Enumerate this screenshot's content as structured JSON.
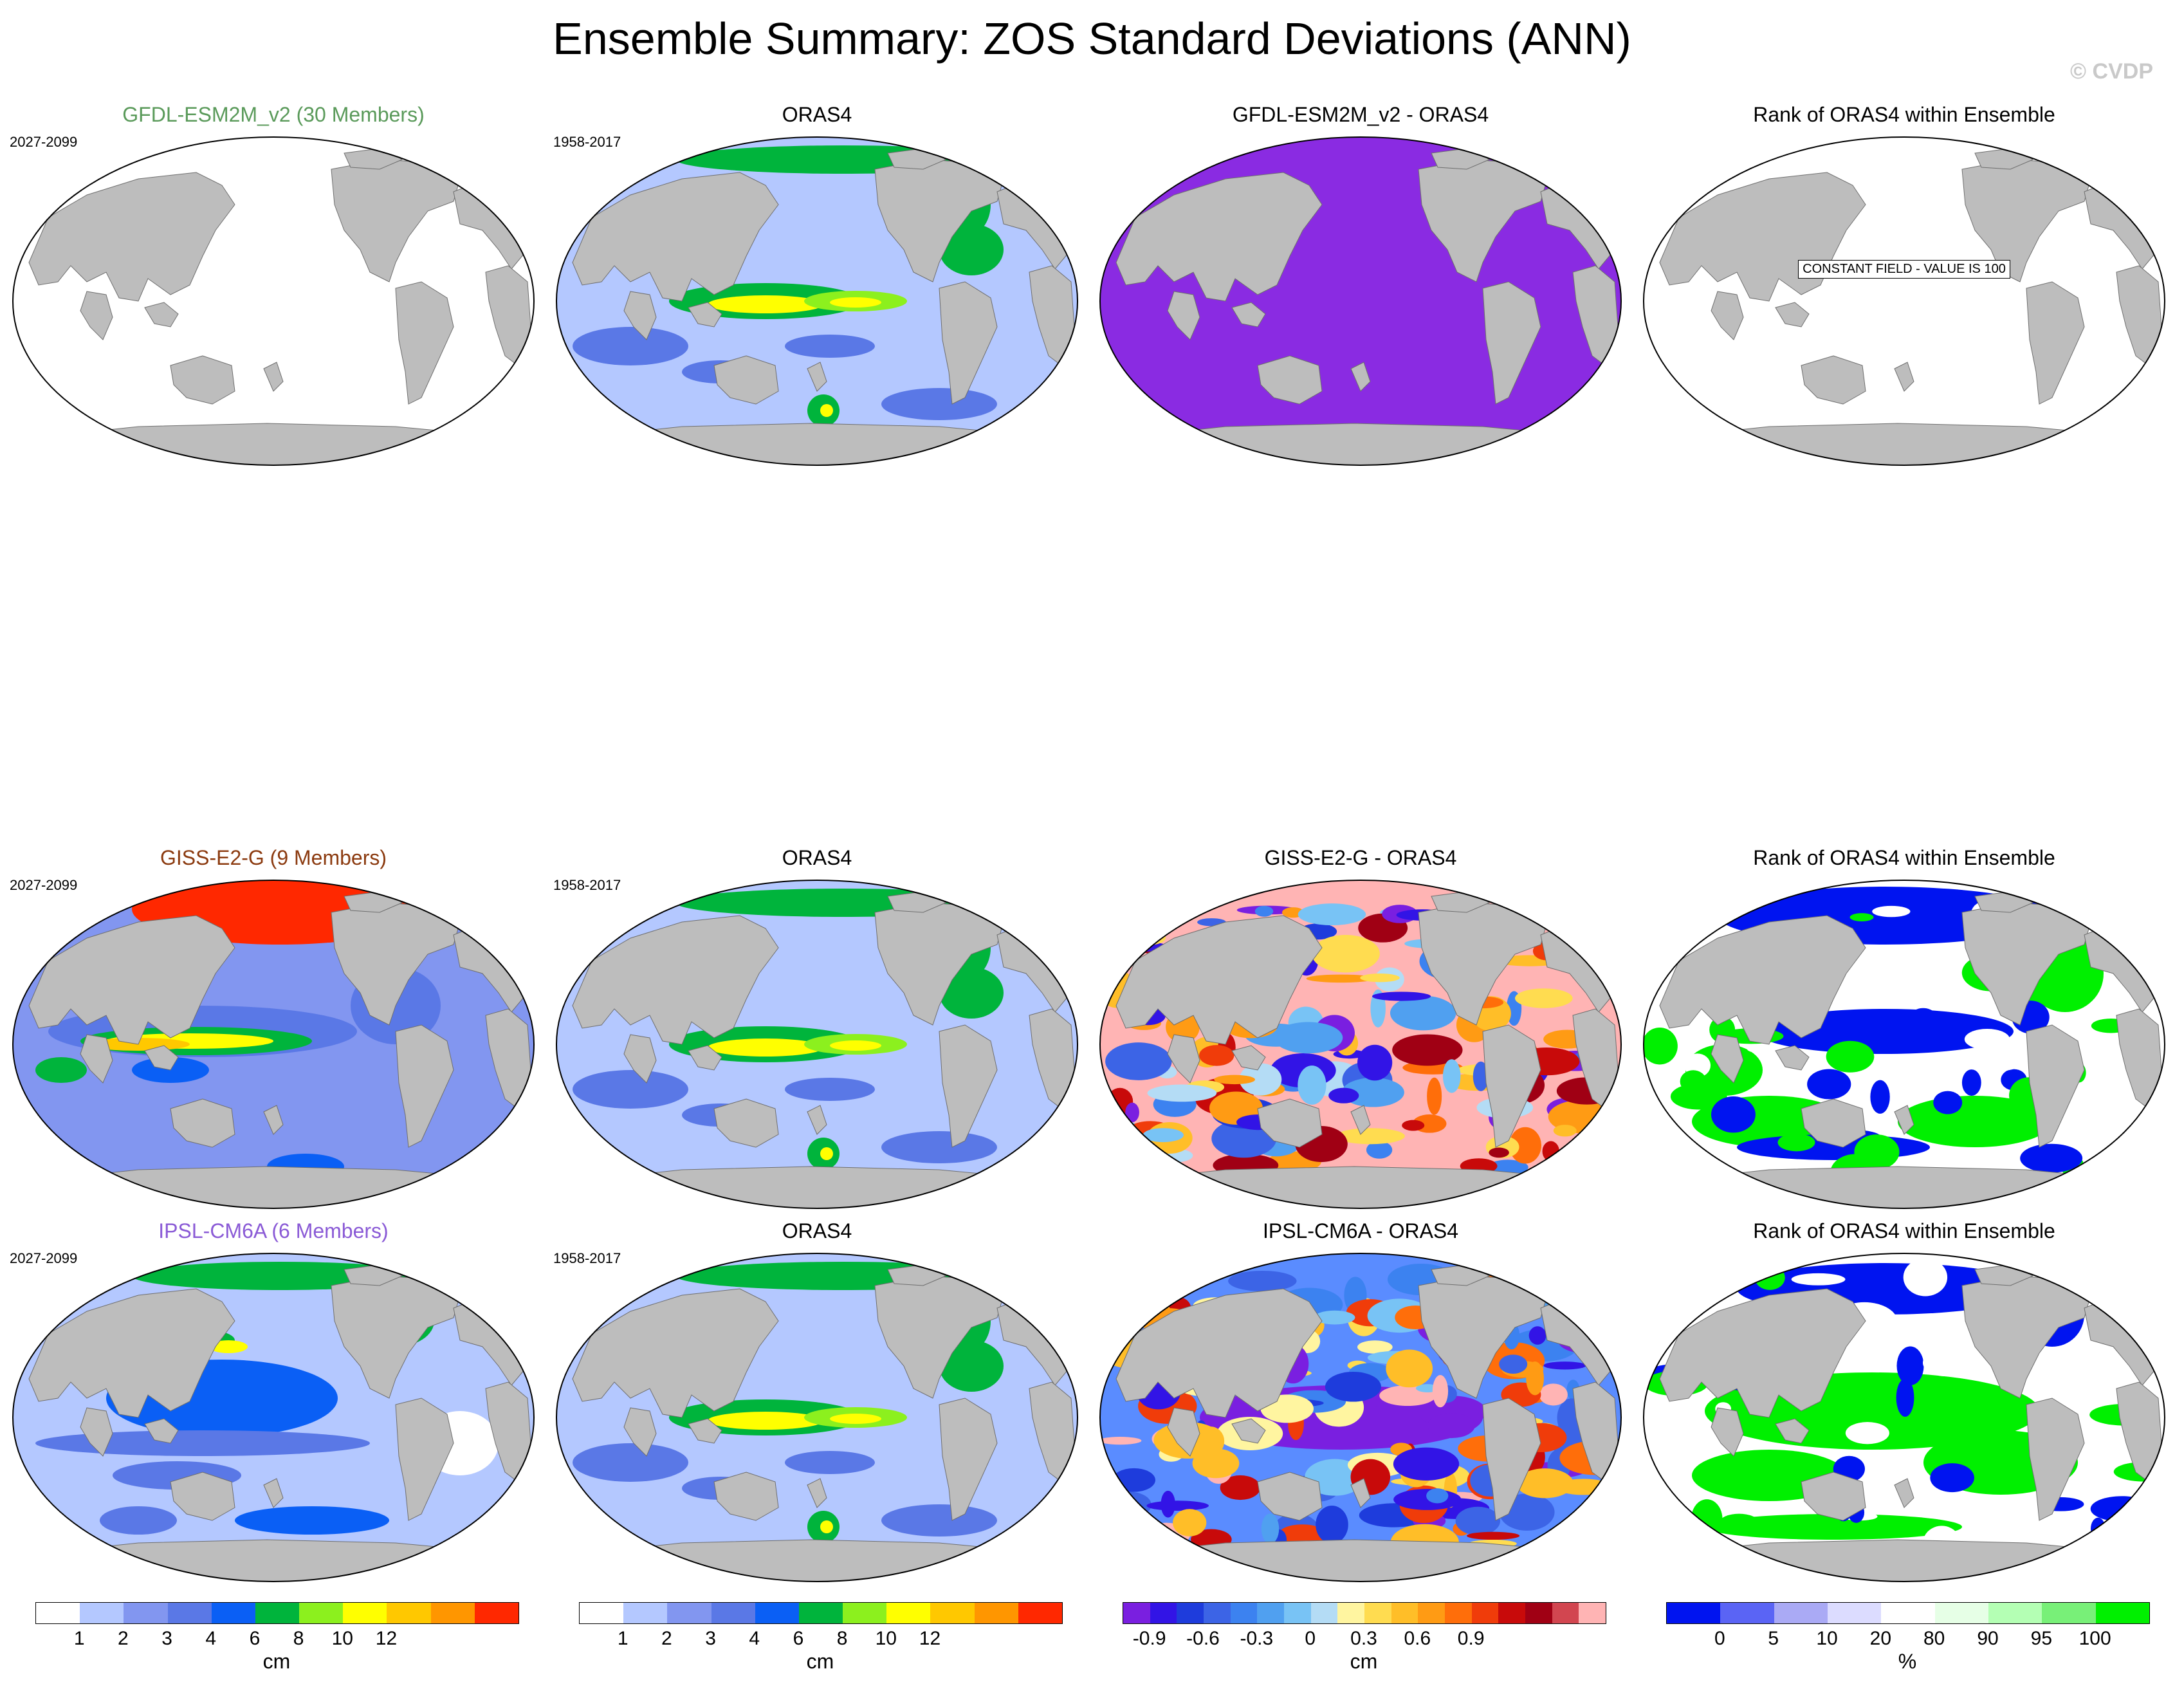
{
  "title": "Ensemble Summary: ZOS Standard Deviations (ANN)",
  "copyright": "© CVDP",
  "colors": {
    "land": "#bdbdbd",
    "ocean_empty": "#ffffff"
  },
  "rows": [
    {
      "panels": [
        {
          "title": "GFDL-ESM2M_v2 (30 Members)",
          "title_color": "#5a9a5a",
          "period": "2027-2099",
          "fill": "#ffffff",
          "pattern": "none",
          "note": ""
        },
        {
          "title": "ORAS4",
          "title_color": "#000000",
          "period": "1958-2017",
          "fill": "#b4c8ff",
          "pattern": "oras",
          "note": ""
        },
        {
          "title": "GFDL-ESM2M_v2 - ORAS4",
          "title_color": "#000000",
          "period": "",
          "fill": "#8a2be2",
          "pattern": "none",
          "note": ""
        },
        {
          "title": "Rank of ORAS4 within Ensemble",
          "title_color": "#000000",
          "period": "",
          "fill": "#ffffff",
          "pattern": "none",
          "note": "CONSTANT FIELD - VALUE IS 100"
        }
      ]
    },
    {
      "panels": [
        {
          "title": "GISS-E2-G (9 Members)",
          "title_color": "#8b3a0f",
          "period": "2027-2099",
          "fill": "#8296f0",
          "pattern": "giss",
          "note": ""
        },
        {
          "title": "ORAS4",
          "title_color": "#000000",
          "period": "1958-2017",
          "fill": "#b4c8ff",
          "pattern": "oras",
          "note": ""
        },
        {
          "title": "GISS-E2-G - ORAS4",
          "title_color": "#000000",
          "period": "",
          "fill": "#ffb4b4",
          "pattern": "diff",
          "note": ""
        },
        {
          "title": "Rank of ORAS4 within Ensemble",
          "title_color": "#000000",
          "period": "",
          "fill": "#ffffff",
          "pattern": "rank1",
          "note": ""
        }
      ]
    },
    {
      "panels": [
        {
          "title": "IPSL-CM6A (6 Members)",
          "title_color": "#8a5ad6",
          "period": "2027-2099",
          "fill": "#b4c8ff",
          "pattern": "ipsl",
          "note": ""
        },
        {
          "title": "ORAS4",
          "title_color": "#000000",
          "period": "1958-2017",
          "fill": "#b4c8ff",
          "pattern": "oras",
          "note": ""
        },
        {
          "title": "IPSL-CM6A - ORAS4",
          "title_color": "#000000",
          "period": "",
          "fill": "#5a8cff",
          "pattern": "diff2",
          "note": ""
        },
        {
          "title": "Rank of ORAS4 within Ensemble",
          "title_color": "#000000",
          "period": "",
          "fill": "#ffffff",
          "pattern": "rank2",
          "note": ""
        }
      ]
    }
  ],
  "colorbars": [
    {
      "unit": "cm",
      "colors": [
        "#ffffff",
        "#b4c8ff",
        "#8296f0",
        "#5a78e6",
        "#0a5ff5",
        "#00b43c",
        "#8cf01e",
        "#ffff00",
        "#ffc800",
        "#ff9600",
        "#ff2800"
      ],
      "labels": [
        {
          "text": "1",
          "at": 1
        },
        {
          "text": "2",
          "at": 2
        },
        {
          "text": "3",
          "at": 3
        },
        {
          "text": "4",
          "at": 4
        },
        {
          "text": "6",
          "at": 5
        },
        {
          "text": "8",
          "at": 6
        },
        {
          "text": "10",
          "at": 7
        },
        {
          "text": "12",
          "at": 8
        }
      ]
    },
    {
      "unit": "cm",
      "colors": [
        "#ffffff",
        "#b4c8ff",
        "#8296f0",
        "#5a78e6",
        "#0a5ff5",
        "#00b43c",
        "#8cf01e",
        "#ffff00",
        "#ffc800",
        "#ff9600",
        "#ff2800"
      ],
      "labels": [
        {
          "text": "1",
          "at": 1
        },
        {
          "text": "2",
          "at": 2
        },
        {
          "text": "3",
          "at": 3
        },
        {
          "text": "4",
          "at": 4
        },
        {
          "text": "6",
          "at": 5
        },
        {
          "text": "8",
          "at": 6
        },
        {
          "text": "10",
          "at": 7
        },
        {
          "text": "12",
          "at": 8
        }
      ]
    },
    {
      "unit": "cm",
      "colors": [
        "#7a1fe0",
        "#3214e6",
        "#1e3cdc",
        "#3c64e6",
        "#3c82f0",
        "#50a0f0",
        "#78c3f5",
        "#b4dcf5",
        "#fff5a0",
        "#ffdc50",
        "#ffbe28",
        "#ff9b14",
        "#ff6e0a",
        "#f03c0a",
        "#c80a0a",
        "#a00014",
        "#d24650",
        "#ffb4b4"
      ],
      "labels": [
        {
          "text": "-0.9",
          "at": 1
        },
        {
          "text": "-0.6",
          "at": 3
        },
        {
          "text": "-0.3",
          "at": 5
        },
        {
          "text": "0",
          "at": 7
        },
        {
          "text": "0.3",
          "at": 9
        },
        {
          "text": "0.6",
          "at": 11
        },
        {
          "text": "0.9",
          "at": 13
        }
      ]
    },
    {
      "unit": "%",
      "colors": [
        "#0014f0",
        "#5a64f5",
        "#aaaaf5",
        "#dcdcff",
        "#ffffff",
        "#e6ffe6",
        "#b4ffb4",
        "#78f078",
        "#00f000"
      ],
      "labels": [
        {
          "text": "0",
          "at": 1
        },
        {
          "text": "5",
          "at": 2
        },
        {
          "text": "10",
          "at": 3
        },
        {
          "text": "20",
          "at": 4
        },
        {
          "text": "80",
          "at": 5
        },
        {
          "text": "90",
          "at": 6
        },
        {
          "text": "95",
          "at": 7
        },
        {
          "text": "100",
          "at": 8
        }
      ]
    }
  ]
}
